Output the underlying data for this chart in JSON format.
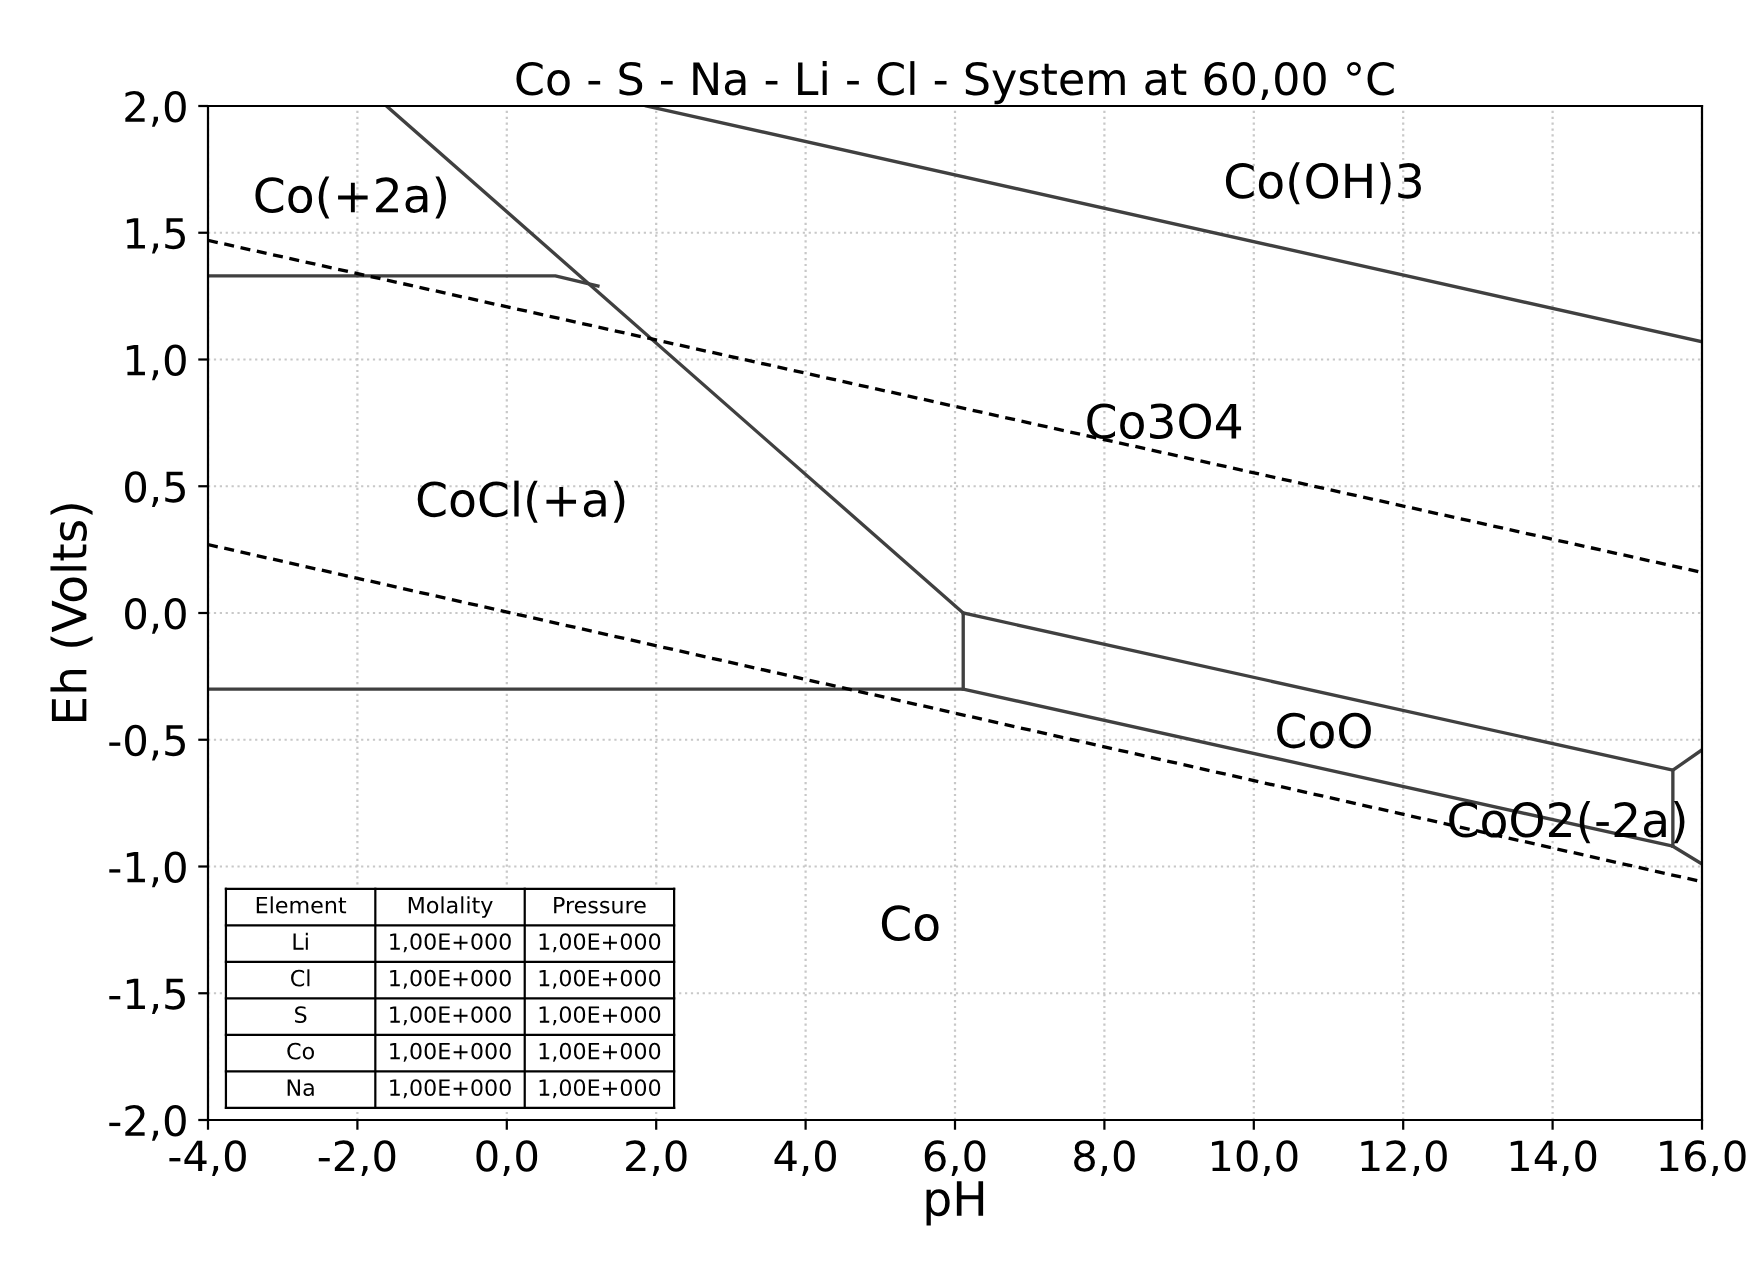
{
  "chart_data": {
    "type": "line",
    "title": "Co - S - Na - Li - Cl - System at 60,00 °C",
    "xlabel": "pH",
    "ylabel": "Eh (Volts)",
    "xlim": [
      -4,
      16
    ],
    "ylim": [
      -2,
      2
    ],
    "xticks": [
      {
        "value": -4,
        "label": "-4,0"
      },
      {
        "value": -2,
        "label": "-2,0"
      },
      {
        "value": 0,
        "label": "0,0"
      },
      {
        "value": 2,
        "label": "2,0"
      },
      {
        "value": 4,
        "label": "4,0"
      },
      {
        "value": 6,
        "label": "6,0"
      },
      {
        "value": 8,
        "label": "8,0"
      },
      {
        "value": 10,
        "label": "10,0"
      },
      {
        "value": 12,
        "label": "12,0"
      },
      {
        "value": 14,
        "label": "14,0"
      },
      {
        "value": 16,
        "label": "16,0"
      }
    ],
    "yticks": [
      {
        "value": -2,
        "label": "-2,0"
      },
      {
        "value": -1.5,
        "label": "-1,5"
      },
      {
        "value": -1,
        "label": "-1,0"
      },
      {
        "value": -0.5,
        "label": "-0,5"
      },
      {
        "value": 0,
        "label": "0,0"
      },
      {
        "value": 0.5,
        "label": "0,5"
      },
      {
        "value": 1,
        "label": "1,0"
      },
      {
        "value": 1.5,
        "label": "1,5"
      },
      {
        "value": 2,
        "label": "2,0"
      }
    ],
    "grid": true,
    "legend": false,
    "series": [
      {
        "color": "#404040",
        "line_style": "solid",
        "x": [
          -4,
          0.65,
          1.22
        ],
        "values": [
          1.33,
          1.33,
          1.29
        ]
      },
      {
        "color": "#404040",
        "line_style": "solid",
        "x": [
          -1.61,
          6.11,
          6.11
        ],
        "values": [
          2.0,
          0.0,
          -0.3
        ]
      },
      {
        "color": "#404040",
        "line_style": "solid",
        "x": [
          -4,
          6.11,
          15.61,
          16
        ],
        "values": [
          -0.3,
          -0.3,
          -0.92,
          -0.99
        ]
      },
      {
        "color": "#404040",
        "line_style": "solid",
        "x": [
          6.11,
          15.61,
          15.61
        ],
        "values": [
          0.0,
          -0.62,
          -0.92
        ]
      },
      {
        "color": "#404040",
        "line_style": "solid",
        "x": [
          15.61,
          16
        ],
        "values": [
          -0.62,
          -0.54
        ]
      },
      {
        "color": "#404040",
        "line_style": "solid",
        "x": [
          1.87,
          16
        ],
        "values": [
          2.0,
          1.07
        ]
      },
      {
        "color": "#000000",
        "line_style": "dashed",
        "x": [
          -4,
          16
        ],
        "values": [
          1.47,
          0.16
        ]
      },
      {
        "color": "#000000",
        "line_style": "dashed",
        "x": [
          -4,
          16
        ],
        "values": [
          0.27,
          -1.06
        ]
      }
    ],
    "annotations": [
      "Co(+2a)",
      "Co(OH)3",
      "Co3O4",
      "CoCl(+a)",
      "CoO",
      "CoO2(-2a)",
      "Co",
      "Element",
      "Molality",
      "Pressure",
      "Li",
      "1,00E+000",
      "1,00E+000",
      "Cl",
      "1,00E+000",
      "1,00E+000",
      "S",
      "1,00E+000",
      "1,00E+000",
      "Co",
      "1,00E+000",
      "1,00E+000",
      "Na",
      "1,00E+000",
      "1,00E+000"
    ]
  }
}
